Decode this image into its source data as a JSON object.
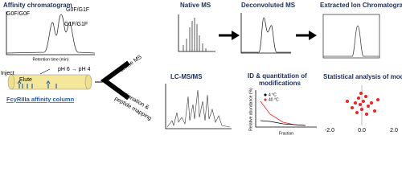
{
  "affinity": {
    "title": "Affinity chromatogram",
    "peaks": [
      "G0F/G0F",
      "G0F/G1F",
      "G1F/G1F"
    ],
    "x_label": "Retention time (min)"
  },
  "column": {
    "gradient": "pH 6 → pH 4",
    "inject": "Inject",
    "elute": "Elute",
    "label": "FcγRIIIa affinity column"
  },
  "branches": {
    "online": "online MS",
    "offline": [
      "fractionation &",
      "peptide mapping"
    ]
  },
  "native_ms": {
    "title": "Native MS"
  },
  "deconvoluted_ms": {
    "title": "Deconvoluted MS"
  },
  "eic": {
    "title": "Extracted Ion Chromatogram"
  },
  "lcmsms": {
    "title": "LC-MS/MS"
  },
  "quant": {
    "title": [
      "ID & quantitation of",
      "modifications"
    ],
    "legend": [
      "4 °C",
      "40 °C"
    ],
    "x_label": "Fraction",
    "y_label": "Relative abundance (%)"
  },
  "stats": {
    "title": "Statistical analysis of modifications",
    "x_ticks": [
      "-2.0",
      "0.0",
      "2.0"
    ]
  }
}
